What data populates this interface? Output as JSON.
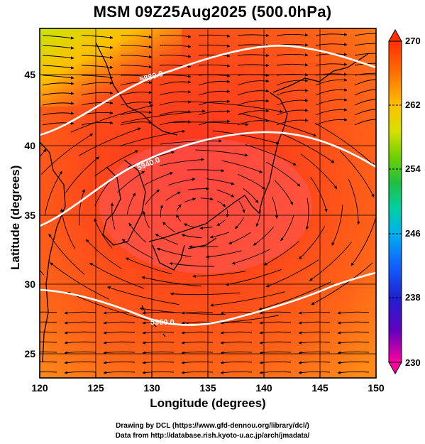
{
  "title": "MSM 09Z25Aug2025 (500.0hPa)",
  "x_axis": {
    "label": "Longitude (degrees)",
    "ticks": [
      "120",
      "125",
      "130",
      "135",
      "140",
      "145",
      "150"
    ]
  },
  "y_axis": {
    "label": "Latitude  (degrees)",
    "ticks": [
      "25",
      "30",
      "35",
      "40",
      "45"
    ]
  },
  "colorbar": {
    "ticks": [
      "270",
      "262",
      "254",
      "246",
      "238",
      "230"
    ],
    "colors": [
      "#ff00a0",
      "#6000c0",
      "#2020d0",
      "#1060ff",
      "#00b0f0",
      "#00d0a0",
      "#20c040",
      "#70d000",
      "#d8e000",
      "#ffc000",
      "#ff7000",
      "#ff3000"
    ]
  },
  "contours": [
    {
      "label": "5880.0",
      "value": 5880.0
    },
    {
      "label": "5940.0",
      "value": 5940.0
    },
    {
      "label": "5960.0",
      "value": 5960.0
    }
  ],
  "credits": {
    "line1": "Drawing by DCL (https://www.gfd-dennou.org/library/dcl/)",
    "line2": "Data from http://database.rish.kyoto-u.ac.jp/arch/jmadata/"
  }
}
